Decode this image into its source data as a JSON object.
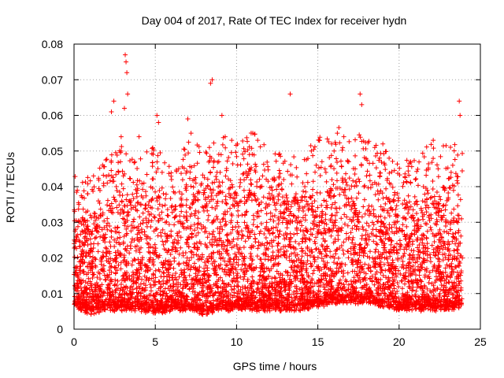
{
  "chart_data": {
    "type": "scatter",
    "title": "Day 004 of 2017, Rate Of TEC Index for receiver hydn",
    "xlabel": "GPS time / hours",
    "ylabel": "ROTI / TECUs",
    "xlim": [
      0,
      25
    ],
    "ylim": [
      0,
      0.08
    ],
    "xticks": [
      "0",
      "5",
      "10",
      "15",
      "20",
      "25"
    ],
    "yticks": [
      "0",
      "0.01",
      "0.02",
      "0.03",
      "0.04",
      "0.05",
      "0.06",
      "0.07",
      "0.08"
    ],
    "xtick_values": [
      0,
      5,
      10,
      15,
      20,
      25
    ],
    "ytick_values": [
      0,
      0.01,
      0.02,
      0.03,
      0.04,
      0.05,
      0.06,
      0.07,
      0.08
    ],
    "grid": true,
    "marker": "+",
    "marker_color": "#ff0000",
    "series": [
      {
        "name": "ROTI",
        "x": [
          0.2,
          0.5,
          1.2,
          2.3,
          2.45,
          2.9,
          3.1,
          3.15,
          3.2,
          3.25,
          3.3,
          4.0,
          5.1,
          5.2,
          7.0,
          7.2,
          8.4,
          8.5,
          9.1,
          9.3,
          11.0,
          11.3,
          12.6,
          13.3,
          14.6,
          15.1,
          16.2,
          16.6,
          17.6,
          17.7,
          18.5,
          19.0,
          20.7,
          22.1,
          22.4,
          23.3,
          23.7,
          23.75,
          0.1,
          0.3,
          0.7,
          1.0,
          1.5,
          2.0,
          2.6,
          3.5,
          4.3,
          4.8,
          5.5,
          6.0,
          6.6,
          7.5,
          8.0,
          8.8,
          9.6,
          10.2,
          10.8,
          11.6,
          12.2,
          12.9,
          13.6,
          14.2,
          14.9,
          15.5,
          16.0,
          16.9,
          17.3,
          18.0,
          18.8,
          19.4,
          19.9,
          20.4,
          21.0,
          21.5,
          22.0,
          22.8,
          23.2,
          23.6
        ],
        "y": [
          0.039,
          0.037,
          0.043,
          0.061,
          0.064,
          0.054,
          0.062,
          0.077,
          0.075,
          0.072,
          0.066,
          0.054,
          0.06,
          0.058,
          0.059,
          0.055,
          0.069,
          0.07,
          0.06,
          0.054,
          0.055,
          0.053,
          0.049,
          0.066,
          0.05,
          0.053,
          0.055,
          0.054,
          0.066,
          0.063,
          0.051,
          0.052,
          0.047,
          0.053,
          0.045,
          0.046,
          0.064,
          0.06,
          0.028,
          0.035,
          0.03,
          0.032,
          0.036,
          0.029,
          0.04,
          0.036,
          0.041,
          0.034,
          0.038,
          0.042,
          0.033,
          0.041,
          0.039,
          0.044,
          0.037,
          0.04,
          0.045,
          0.043,
          0.039,
          0.042,
          0.036,
          0.04,
          0.046,
          0.044,
          0.05,
          0.047,
          0.045,
          0.043,
          0.048,
          0.041,
          0.038,
          0.035,
          0.042,
          0.04,
          0.037,
          0.039,
          0.044,
          0.041
        ]
      }
    ],
    "cloud_envelope": {
      "x": [
        0,
        1,
        2,
        3,
        4,
        5,
        6,
        7,
        8,
        9,
        10,
        11,
        12,
        13,
        14,
        15,
        16,
        17,
        18,
        19,
        20,
        21,
        22,
        23,
        23.9
      ],
      "upper": [
        0.035,
        0.03,
        0.036,
        0.04,
        0.036,
        0.04,
        0.034,
        0.042,
        0.038,
        0.044,
        0.04,
        0.044,
        0.038,
        0.037,
        0.038,
        0.042,
        0.046,
        0.044,
        0.042,
        0.04,
        0.034,
        0.038,
        0.04,
        0.042,
        0.038
      ],
      "lower": [
        0.007,
        0.005,
        0.006,
        0.006,
        0.006,
        0.005,
        0.006,
        0.006,
        0.005,
        0.006,
        0.006,
        0.006,
        0.006,
        0.006,
        0.006,
        0.007,
        0.008,
        0.008,
        0.008,
        0.007,
        0.006,
        0.006,
        0.006,
        0.006,
        0.007
      ]
    }
  }
}
